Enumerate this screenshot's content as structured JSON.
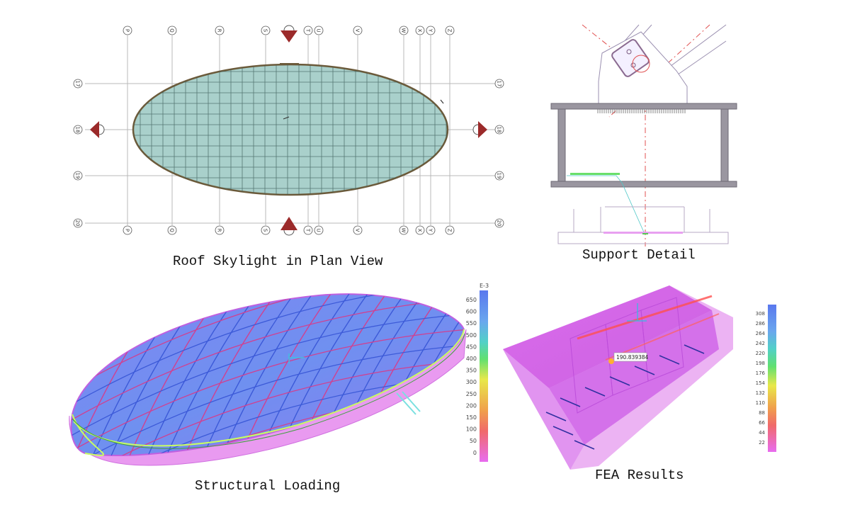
{
  "captions": {
    "plan": "Roof Skylight in Plan View",
    "support": "Support Detail",
    "loading": "Structural Loading",
    "fea": "FEA Results"
  },
  "plan": {
    "grid_top": [
      "P",
      "Q",
      "R",
      "S",
      "T",
      "U",
      "V",
      "W",
      "X",
      "Y",
      "Z"
    ],
    "grid_rows": [
      "17",
      "18",
      "19",
      "20"
    ]
  },
  "loading_scale": {
    "header": "E-3",
    "ticks": [
      "650",
      "600",
      "550",
      "500",
      "450",
      "400",
      "350",
      "300",
      "250",
      "200",
      "150",
      "100",
      "50",
      "0"
    ]
  },
  "fea": {
    "tag": "190.839384",
    "ticks": [
      "308",
      "286",
      "264",
      "242",
      "220",
      "198",
      "176",
      "154",
      "132",
      "110",
      "88",
      "66",
      "44",
      "22"
    ]
  },
  "colors": {
    "glass": "#9fc9c4",
    "frame": "#6b5a3a",
    "steel": "#9a96a0",
    "blue": "#5a78ee",
    "magenta": "#e86cf0",
    "red_mark": "#b02020"
  }
}
